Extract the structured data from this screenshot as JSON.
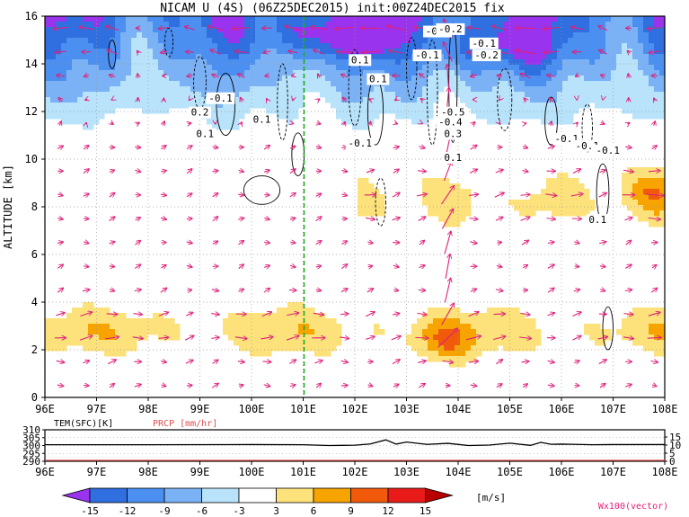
{
  "chart_data": [
    {
      "type": "heatmap",
      "title": "NICAM U (4S) (06Z25DEC2015) init:00Z24DEC2015 fix",
      "ylabel": "ALTITUDE [km]",
      "xlim": [
        96,
        108
      ],
      "ylim": [
        0,
        16
      ],
      "x_ticks": [
        "96E",
        "97E",
        "98E",
        "99E",
        "100E",
        "101E",
        "102E",
        "103E",
        "104E",
        "105E",
        "106E",
        "107E",
        "108E"
      ],
      "y_ticks": [
        "0",
        "2",
        "4",
        "6",
        "8",
        "10",
        "12",
        "14",
        "16"
      ],
      "grid": true,
      "marker_line_lon": 101,
      "contour_labels": [
        {
          "text": "-0.1",
          "lon": 103.6,
          "alt": 15.3
        },
        {
          "text": "-0.2",
          "lon": 103.85,
          "alt": 15.4
        },
        {
          "text": "-0.1",
          "lon": 104.5,
          "alt": 14.8
        },
        {
          "text": "-0.1",
          "lon": 103.4,
          "alt": 14.3
        },
        {
          "text": "-0.2",
          "lon": 104.55,
          "alt": 14.3
        },
        {
          "text": "0.1",
          "lon": 102.1,
          "alt": 14.1
        },
        {
          "text": "0.1",
          "lon": 102.45,
          "alt": 13.3
        },
        {
          "text": "-0.1",
          "lon": 99.4,
          "alt": 12.5
        },
        {
          "text": "0.2",
          "lon": 99.0,
          "alt": 11.9
        },
        {
          "text": "0.1",
          "lon": 100.2,
          "alt": 11.6
        },
        {
          "text": "0.1",
          "lon": 99.1,
          "alt": 11.0
        },
        {
          "text": "-0.1",
          "lon": 102.1,
          "alt": 10.6
        },
        {
          "text": "-0.5",
          "lon": 103.9,
          "alt": 11.9
        },
        {
          "text": "-0.4",
          "lon": 103.85,
          "alt": 11.5
        },
        {
          "text": "0.3",
          "lon": 103.9,
          "alt": 11.0
        },
        {
          "text": "0.1",
          "lon": 103.9,
          "alt": 10.0
        },
        {
          "text": "-0.1",
          "lon": 106.1,
          "alt": 10.8
        },
        {
          "text": "-0.1",
          "lon": 106.5,
          "alt": 10.5
        },
        {
          "text": "-0.1",
          "lon": 106.9,
          "alt": 10.3
        },
        {
          "text": "0.1",
          "lon": 106.7,
          "alt": 7.4
        }
      ],
      "wind_vector_key": "Wx100(vector)",
      "color_bar": {
        "ticks": [
          "-15",
          "-12",
          "-9",
          "-6",
          "-3",
          "3",
          "6",
          "9",
          "12",
          "15"
        ],
        "unit": "[m/s]",
        "colors": [
          "#9933ee",
          "#2f6fe0",
          "#4b8ff0",
          "#7ab2f5",
          "#b8e3fa",
          "#ffffff",
          "#fde17a",
          "#f7a400",
          "#f05a0a",
          "#e81a1a",
          "#b80000"
        ]
      }
    },
    {
      "type": "line",
      "xlim": [
        96,
        108
      ],
      "series": [
        {
          "name": "TEM(SFC)[K]",
          "color": "#000000",
          "x": [
            96,
            98,
            100,
            101,
            101.5,
            102,
            102.3,
            102.6,
            102.8,
            103.0,
            103.4,
            103.8,
            104.2,
            104.6,
            105.0,
            105.4,
            105.6,
            105.8,
            106.0,
            106.3,
            106.6,
            107,
            108
          ],
          "values": [
            300.5,
            300.5,
            300.6,
            300.5,
            300.0,
            300.2,
            301.0,
            303.6,
            300.9,
            302.2,
            300.7,
            301.4,
            300.0,
            300.3,
            301.5,
            300.1,
            302.0,
            300.8,
            300.9,
            300.7,
            300.5,
            300.6,
            300.6
          ]
        },
        {
          "name": "PRCP [mm/hr]",
          "color": "#e05050",
          "x": [
            96,
            108
          ],
          "values": [
            0,
            0
          ]
        }
      ],
      "y_ticks_left": [
        "310",
        "305",
        "300",
        "295",
        "290"
      ],
      "y_ticks_right": [
        "15",
        "10",
        "5",
        "0"
      ],
      "x_ticks": [
        "96E",
        "97E",
        "98E",
        "99E",
        "100E",
        "101E",
        "102E",
        "103E",
        "104E",
        "105E",
        "106E",
        "107E",
        "108E"
      ]
    }
  ],
  "colors": {
    "vector": "#e0207a",
    "marker_line": "#22aa22",
    "prcp": "#e05050",
    "grid": "#999999"
  }
}
